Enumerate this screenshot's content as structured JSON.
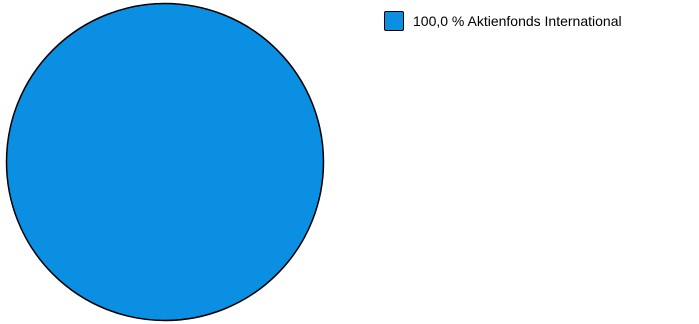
{
  "chart_data": {
    "type": "pie",
    "title": "",
    "slices": [
      {
        "label": "Aktienfonds International",
        "value": 100.0,
        "legend_text": "100,0 % Aktienfonds International",
        "color": "#0A8FE3"
      }
    ],
    "legend_placement": "top-right",
    "outline_color": "#000000"
  }
}
